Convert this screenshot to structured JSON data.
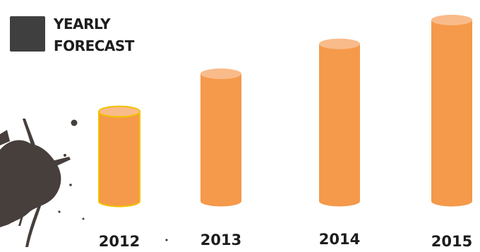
{
  "chart_data": {
    "type": "bar",
    "categories": [
      "2012",
      "2013",
      "2014",
      "2015"
    ],
    "values": [
      45,
      64,
      79,
      91
    ],
    "legend": [
      "YEARLY",
      "FORECAST"
    ],
    "ylim": [
      0,
      100
    ],
    "grid": false,
    "legend_position": "top-left",
    "colors": {
      "bar_body": "#f5994a",
      "bar_top": "#f9bb8a",
      "highlight_outline": "#f2c300",
      "legend_swatch": "#3f3f3f",
      "splatter": "#463f3b"
    },
    "highlighted_category": "2012"
  }
}
